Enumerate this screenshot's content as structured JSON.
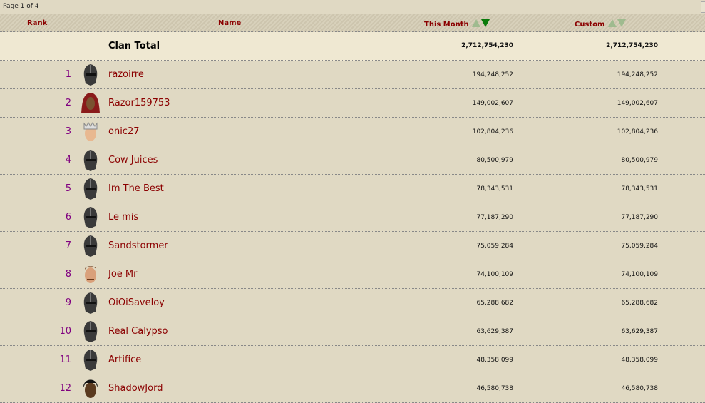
{
  "pager": "Page 1 of 4",
  "columns": {
    "rank": "Rank",
    "name": "Name",
    "this_month": "This Month",
    "custom": "Custom"
  },
  "sort": {
    "column": "This Month",
    "direction": "descending"
  },
  "total": {
    "label": "Clan Total",
    "this_month": "2,712,754,230",
    "custom": "2,712,754,230"
  },
  "rows": [
    {
      "rank": "1",
      "name": "razoirre",
      "avatar": "helmet",
      "this_month": "194,248,252",
      "custom": "194,248,252"
    },
    {
      "rank": "2",
      "name": "Razor159753",
      "avatar": "red-hood",
      "this_month": "149,002,607",
      "custom": "149,002,607"
    },
    {
      "rank": "3",
      "name": "onic27",
      "avatar": "crown",
      "this_month": "102,804,236",
      "custom": "102,804,236"
    },
    {
      "rank": "4",
      "name": "Cow Juices",
      "avatar": "helmet",
      "this_month": "80,500,979",
      "custom": "80,500,979"
    },
    {
      "rank": "5",
      "name": "Im The Best",
      "avatar": "helmet",
      "this_month": "78,343,531",
      "custom": "78,343,531"
    },
    {
      "rank": "6",
      "name": "Le mis",
      "avatar": "helmet",
      "this_month": "77,187,290",
      "custom": "77,187,290"
    },
    {
      "rank": "7",
      "name": "Sandstormer",
      "avatar": "helmet",
      "this_month": "75,059,284",
      "custom": "75,059,284"
    },
    {
      "rank": "8",
      "name": "Joe Mr",
      "avatar": "man",
      "this_month": "74,100,109",
      "custom": "74,100,109"
    },
    {
      "rank": "9",
      "name": "OiOiSaveloy",
      "avatar": "helmet",
      "this_month": "65,288,682",
      "custom": "65,288,682"
    },
    {
      "rank": "10",
      "name": "Real Calypso",
      "avatar": "helmet",
      "this_month": "63,629,387",
      "custom": "63,629,387"
    },
    {
      "rank": "11",
      "name": "Artifice",
      "avatar": "helmet",
      "this_month": "48,358,099",
      "custom": "48,358,099"
    },
    {
      "rank": "12",
      "name": "ShadowJord",
      "avatar": "dark-hair",
      "this_month": "46,580,738",
      "custom": "46,580,738"
    }
  ]
}
